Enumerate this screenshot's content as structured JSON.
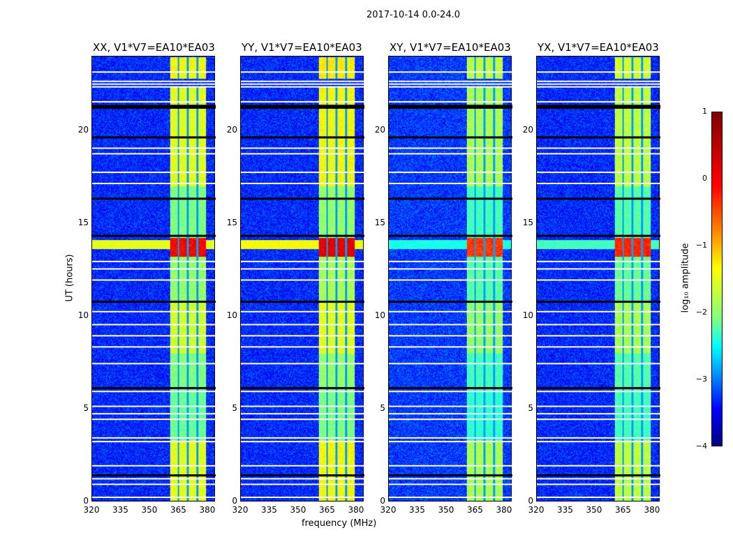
{
  "chart_data": {
    "type": "heatmap",
    "title": "2017-10-14 0.0-24.0",
    "xlabel": "frequency (MHz)",
    "ylabel": "UT (hours)",
    "xlim": [
      320,
      384
    ],
    "ylim": [
      0,
      24
    ],
    "xticks": [
      "320",
      "335",
      "350",
      "365",
      "380"
    ],
    "xtick_values": [
      320,
      335,
      350,
      365,
      380
    ],
    "yticks": [
      "0",
      "5",
      "10",
      "15",
      "20"
    ],
    "ytick_values": [
      0,
      5,
      10,
      15,
      20
    ],
    "colorbar": {
      "label": "log₁₀ amplitude",
      "range": [
        -4,
        1
      ],
      "ticks": [
        "1",
        "0",
        "−1",
        "−2",
        "−3",
        "−4"
      ],
      "tick_values": [
        1,
        0,
        -1,
        -2,
        -3,
        -4
      ],
      "colormap": "jet"
    },
    "panels": [
      {
        "title": "XX, V1*V7=EA10*EA03",
        "background": -3.2,
        "band_offset": 0,
        "rfi_row": -1.0
      },
      {
        "title": "YY, V1*V7=EA10*EA03",
        "background": -3.2,
        "band_offset": 0.1,
        "rfi_row": -0.9
      },
      {
        "title": "XY, V1*V7=EA10*EA03",
        "background": -3.1,
        "band_offset": -0.3,
        "rfi_row": -2.0
      },
      {
        "title": "YX, V1*V7=EA10*EA03",
        "background": -3.2,
        "band_offset": -0.2,
        "rfi_row": -1.8
      }
    ],
    "band_freq_range": [
      360.5,
      379.5
    ],
    "band_gaps_mhz": [
      365,
      370,
      375
    ],
    "band_segments": [
      {
        "t": [
          0,
          3.3
        ],
        "v": -1.0
      },
      {
        "t": [
          3.3,
          6.1
        ],
        "v": -1.6
      },
      {
        "t": [
          6.1,
          8.0
        ],
        "v": -1.5
      },
      {
        "t": [
          8.0,
          10.8
        ],
        "v": -1.1
      },
      {
        "t": [
          10.8,
          13.2
        ],
        "v": -1.4
      },
      {
        "t": [
          13.2,
          14.2
        ],
        "v": 0.4
      },
      {
        "t": [
          14.2,
          17.0
        ],
        "v": -1.5
      },
      {
        "t": [
          17.0,
          21.5
        ],
        "v": -1.0
      },
      {
        "t": [
          21.5,
          22.4
        ],
        "v": -1.0
      },
      {
        "t": [
          22.8,
          24
        ],
        "v": -0.9
      }
    ],
    "rfi_row_hours": [
      13.6,
      14.1
    ],
    "flagged_rows_hours": [
      0.3,
      1.0,
      1.3,
      2.0,
      3.3,
      3.5,
      4.5,
      4.8,
      5.2,
      6.0,
      7.5,
      8.4,
      9.0,
      9.6,
      10.3,
      12.0,
      12.6,
      13.0,
      17.2,
      17.8,
      18.8,
      19.1,
      21.6,
      22.4,
      22.55,
      22.7,
      23.2
    ],
    "blank_rows_hours": [
      1.5,
      6.2,
      10.85,
      14.4,
      16.4,
      19.7,
      21.3,
      21.4
    ]
  }
}
